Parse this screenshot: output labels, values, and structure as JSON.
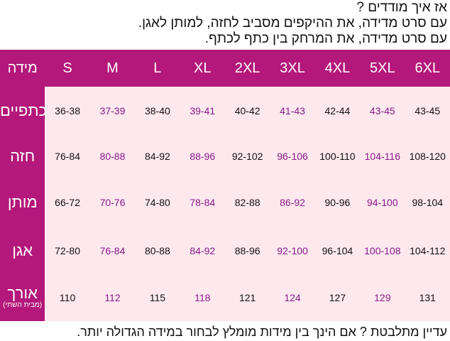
{
  "header": {
    "lines": [
      "אז איך מודדים ?",
      "עם סרט מדידה, את ההיקפים מסביב לחזה, למותן לאגן.",
      "עם סרט מדידה, את המרחק בין כתף לכתף."
    ]
  },
  "table": {
    "corner": "מידה",
    "sizes": [
      "S",
      "M",
      "L",
      "XL",
      "2XL",
      "3XL",
      "4XL",
      "5XL",
      "6XL"
    ],
    "rows": [
      {
        "label": "כתפיים",
        "values": [
          "36-38",
          "37-39",
          "38-40",
          "39-41",
          "40-42",
          "41-43",
          "42-44",
          "43-45",
          "43-45"
        ]
      },
      {
        "label": "חזה",
        "values": [
          "76-84",
          "80-88",
          "84-92",
          "88-96",
          "92-102",
          "96-106",
          "100-110",
          "104-116",
          "108-120"
        ]
      },
      {
        "label": "מותן",
        "values": [
          "66-72",
          "70-76",
          "74-80",
          "78-84",
          "82-88",
          "86-92",
          "90-96",
          "94-100",
          "98-104"
        ]
      },
      {
        "label": "אגן",
        "values": [
          "72-80",
          "76-84",
          "80-88",
          "84-92",
          "88-96",
          "92-100",
          "96-104",
          "100-108",
          "104-112"
        ]
      },
      {
        "label": "אורך",
        "note": "(מבית השתי)",
        "values": [
          "110",
          "112",
          "115",
          "118",
          "121",
          "124",
          "127",
          "129",
          "131"
        ]
      }
    ]
  },
  "footer": "עדיין מתלבטת ? אם הינך בין מידות מומלץ לבחור במידה הגדולה יותר."
}
